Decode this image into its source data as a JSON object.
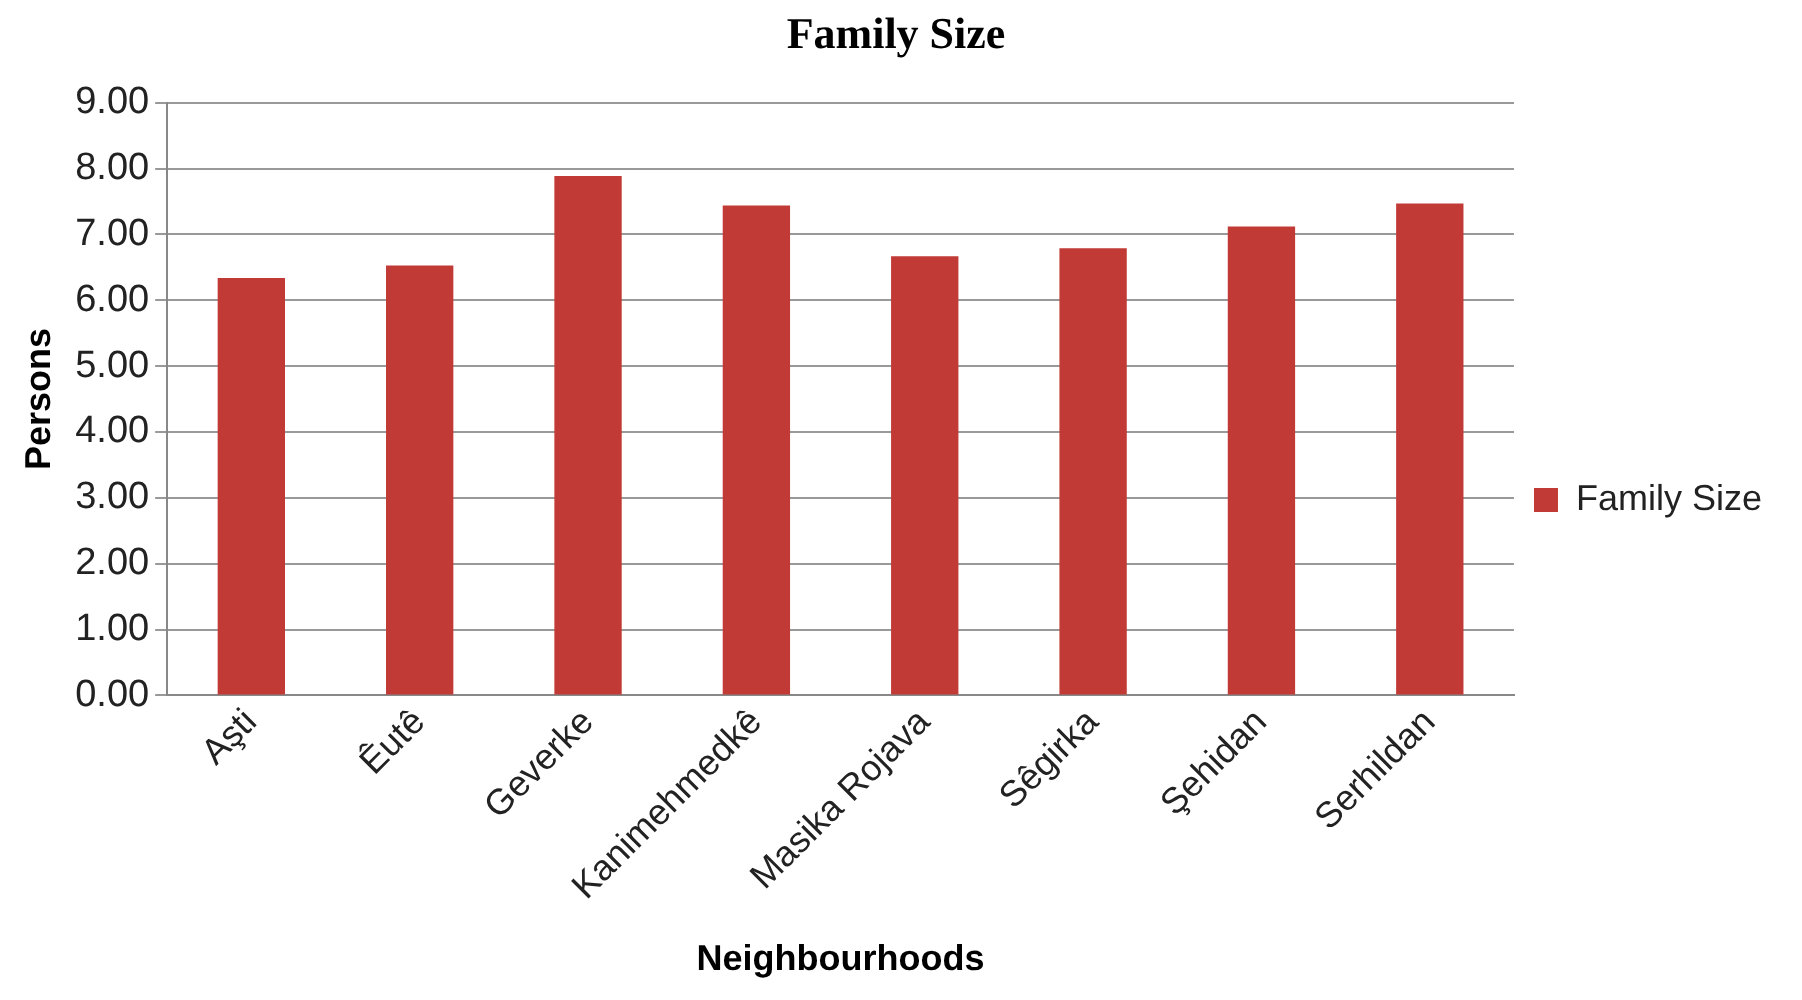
{
  "chart_data": {
    "type": "bar",
    "title": "Family Size",
    "xlabel": "Neighbourhoods",
    "ylabel": "Persons",
    "categories": [
      "Aşti",
      "Êutê",
      "Geverke",
      "Kanimehmedkê",
      "Masika Rojava",
      "Sêgirka",
      "Şehidan",
      "Serhildan"
    ],
    "series": [
      {
        "name": "Family Size",
        "color": "#c23a35",
        "values": [
          6.34,
          6.53,
          7.89,
          7.44,
          6.67,
          6.79,
          7.12,
          7.47
        ]
      }
    ],
    "ylim": [
      0,
      9
    ],
    "yticks": [
      {
        "value": 0,
        "label": "0.00"
      },
      {
        "value": 1,
        "label": "1.00"
      },
      {
        "value": 2,
        "label": "2.00"
      },
      {
        "value": 3,
        "label": "3.00"
      },
      {
        "value": 4,
        "label": "4.00"
      },
      {
        "value": 5,
        "label": "5.00"
      },
      {
        "value": 6,
        "label": "6.00"
      },
      {
        "value": 7,
        "label": "7.00"
      },
      {
        "value": 8,
        "label": "8.00"
      },
      {
        "value": 9,
        "label": "9.00"
      }
    ],
    "grid": "y",
    "legend": "right"
  }
}
